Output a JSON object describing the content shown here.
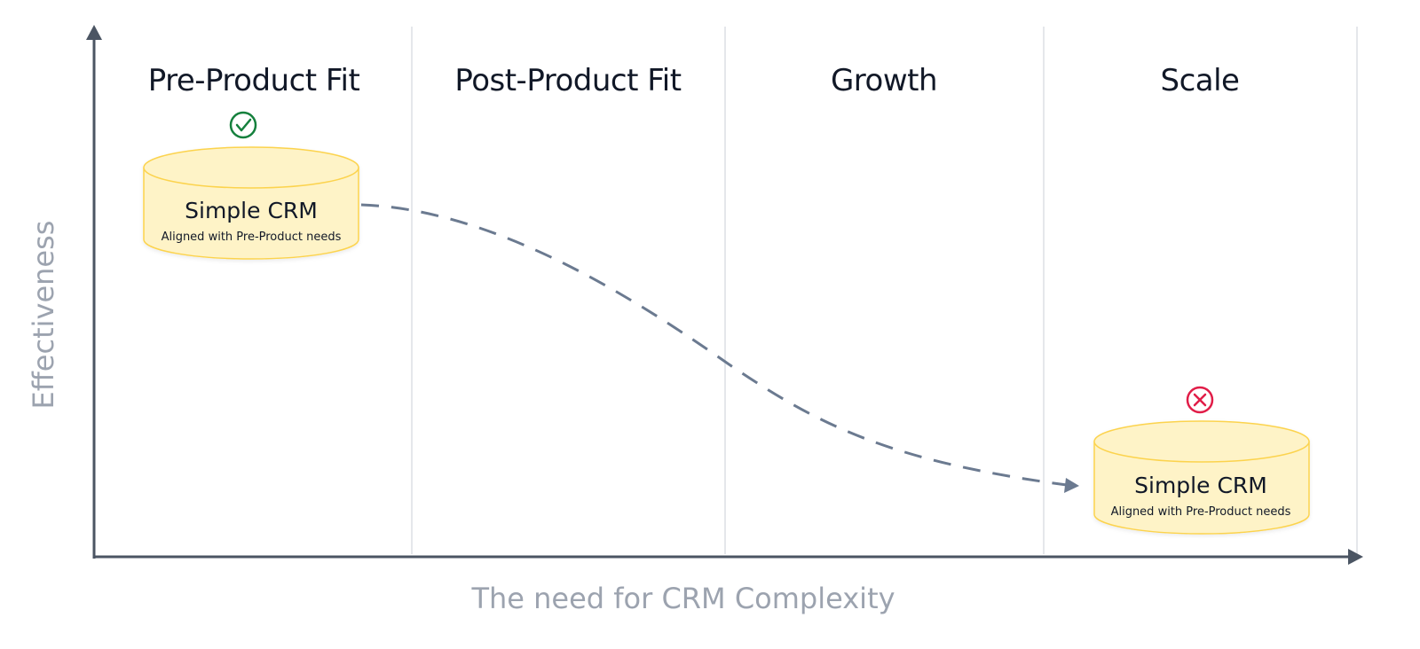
{
  "axes": {
    "y_label": "Effectiveness",
    "x_label": "The need for CRM Complexity"
  },
  "stages": [
    {
      "label": "Pre-Product Fit"
    },
    {
      "label": "Post-Product Fit"
    },
    {
      "label": "Growth"
    },
    {
      "label": "Scale"
    }
  ],
  "nodes": {
    "start": {
      "title": "Simple CRM",
      "subtitle": "Aligned with Pre-Product needs",
      "status_icon": "check-circle-icon",
      "status_color": "#15803d"
    },
    "end": {
      "title": "Simple CRM",
      "subtitle": "Aligned with Pre-Product needs",
      "status_icon": "x-circle-icon",
      "status_color": "#e11d48"
    }
  },
  "colors": {
    "axis": "#4b5563",
    "divider": "#e5e7eb",
    "cylinder_fill": "#fef3c7",
    "cylinder_stroke": "#fcd34d",
    "connector": "#6b7a90"
  }
}
